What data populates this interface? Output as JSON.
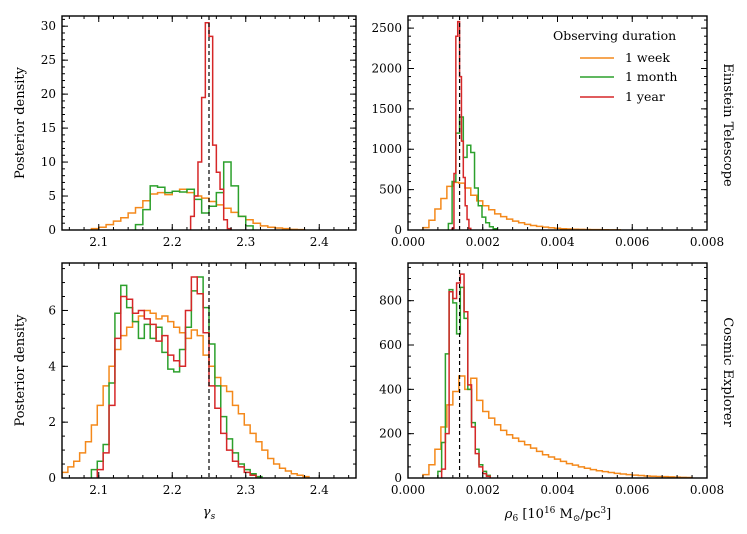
{
  "figure": {
    "row_labels": [
      "Einstein Telescope",
      "Cosmic Explorer"
    ],
    "legend_title": "Observing duration",
    "legend_entries": [
      "1 week",
      "1 month",
      "1 year"
    ],
    "colors": {
      "1 week": "#f4891b",
      "1 month": "#2ca02c",
      "1 year": "#d62728"
    }
  },
  "chart_data": [
    {
      "type": "histogram",
      "panel": "Einstein Telescope - gamma_s",
      "xlabel": "",
      "ylabel": "Posterior density",
      "xlim": [
        2.05,
        2.45
      ],
      "ylim": [
        0,
        31.5
      ],
      "xticks": [
        2.1,
        2.2,
        2.3,
        2.4
      ],
      "xticklabels": [
        "2.1",
        "2.2",
        "2.3",
        "2.4"
      ],
      "yticks": [
        0,
        5,
        10,
        15,
        20,
        25,
        30
      ],
      "yticklabels": [
        "0",
        "5",
        "10",
        "15",
        "20",
        "25",
        "30"
      ],
      "minor_x": 0.02,
      "minor_y": 1,
      "truth": 2.25,
      "series": [
        {
          "name": "1 week",
          "x0": 2.09,
          "dx": 0.01,
          "values": [
            0.2,
            0.4,
            0.8,
            1.3,
            1.8,
            2.5,
            3.3,
            4.3,
            5.3,
            5.5,
            5.2,
            5.7,
            6.0,
            5.5,
            5.0,
            4.7,
            4.2,
            3.7,
            3.2,
            2.6,
            2.0,
            1.5,
            1.0,
            0.6,
            0.4,
            0.3,
            0.2,
            0.1,
            0.05
          ]
        },
        {
          "name": "1 month",
          "x0": 2.15,
          "dx": 0.01,
          "values": [
            0.8,
            3.0,
            6.5,
            6.3,
            5.5,
            5.7,
            5.6,
            6.0,
            4.5,
            2.5,
            3.5,
            5.5,
            10.0,
            6.5,
            2.0,
            0.6
          ]
        },
        {
          "name": "1 year",
          "x0": 2.225,
          "dx": 0.005,
          "values": [
            2.0,
            5.0,
            10.0,
            19.5,
            30.5,
            28.5,
            12.5,
            8.5,
            6.0,
            1.5,
            0.2
          ]
        }
      ]
    },
    {
      "type": "histogram",
      "panel": "Einstein Telescope - rho_6",
      "xlabel": "",
      "ylabel": "",
      "xlim": [
        0,
        0.008
      ],
      "ylim": [
        0,
        2650
      ],
      "xticks": [
        0,
        0.002,
        0.004,
        0.006,
        0.008
      ],
      "xticklabels": [
        "0.000",
        "0.002",
        "0.004",
        "0.006",
        "0.008"
      ],
      "yticks": [
        0,
        500,
        1000,
        1500,
        2000,
        2500
      ],
      "yticklabels": [
        "0",
        "500",
        "1000",
        "1500",
        "2000",
        "2500"
      ],
      "minor_x": 0.0004,
      "minor_y": 100,
      "truth": 0.00138,
      "series": [
        {
          "name": "1 week",
          "x0": 0.0004,
          "dx": 0.00016,
          "values": [
            30,
            120,
            260,
            390,
            540,
            590,
            580,
            520,
            430,
            360,
            300,
            250,
            200,
            165,
            135,
            110,
            90,
            70,
            55,
            45,
            35,
            28,
            22,
            16,
            12,
            10,
            8,
            6,
            5,
            4,
            3,
            2,
            2
          ]
        },
        {
          "name": "1 month",
          "x0": 0.00108,
          "dx": 0.0001,
          "values": [
            80,
            600,
            1200,
            1400,
            900,
            1050,
            960,
            520,
            300,
            160,
            90,
            40,
            15
          ]
        },
        {
          "name": "1 year",
          "x0": 0.00118,
          "dx": 5e-05,
          "values": [
            20,
            700,
            2400,
            2580,
            1900,
            1100,
            650,
            300,
            130,
            20
          ]
        }
      ]
    },
    {
      "type": "histogram",
      "panel": "Cosmic Explorer - gamma_s",
      "xlabel": "γs",
      "ylabel": "Posterior density",
      "xlim": [
        2.05,
        2.45
      ],
      "ylim": [
        0,
        7.7
      ],
      "xticks": [
        2.1,
        2.2,
        2.3,
        2.4
      ],
      "xticklabels": [
        "2.1",
        "2.2",
        "2.3",
        "2.4"
      ],
      "yticks": [
        0,
        2,
        4,
        6
      ],
      "yticklabels": [
        "0",
        "2",
        "4",
        "6"
      ],
      "minor_x": 0.02,
      "minor_y": 0.5,
      "truth": 2.25,
      "series": [
        {
          "name": "1 week",
          "x0": 2.05,
          "dx": 0.008,
          "values": [
            0.2,
            0.4,
            0.6,
            0.9,
            1.3,
            1.9,
            2.6,
            3.3,
            4.0,
            4.6,
            5.1,
            5.4,
            5.6,
            5.8,
            6.0,
            5.9,
            5.7,
            5.8,
            5.6,
            5.4,
            5.2,
            5.0,
            5.3,
            5.1,
            4.4,
            4.0,
            3.6,
            3.3,
            3.1,
            2.6,
            2.3,
            1.9,
            1.6,
            1.3,
            1.0,
            0.7,
            0.5,
            0.35,
            0.25,
            0.15,
            0.1,
            0.05
          ]
        },
        {
          "name": "1 month",
          "x0": 2.09,
          "dx": 0.008,
          "values": [
            0.3,
            0.6,
            1.2,
            3.4,
            5.9,
            6.9,
            6.1,
            5.6,
            5.0,
            5.5,
            5.0,
            5.4,
            4.5,
            3.9,
            3.8,
            4.6,
            5.4,
            6.7,
            7.2,
            6.1,
            4.8,
            3.3,
            2.2,
            1.4,
            0.9,
            0.5,
            0.3,
            0.15,
            0.05
          ]
        },
        {
          "name": "1 year",
          "x0": 2.098,
          "dx": 0.008,
          "values": [
            0.3,
            0.9,
            2.6,
            5.0,
            6.5,
            6.4,
            5.9,
            6.0,
            5.7,
            5.5,
            4.9,
            5.1,
            4.4,
            4.2,
            4.0,
            6.0,
            7.2,
            6.6,
            5.2,
            3.3,
            2.5,
            1.6,
            1.0,
            0.6,
            0.4,
            0.2,
            0.1
          ]
        }
      ]
    },
    {
      "type": "histogram",
      "panel": "Cosmic Explorer - rho_6",
      "xlabel": "ρ6 [10^16 M⊙/pc^3]",
      "ylabel": "",
      "xlim": [
        0,
        0.008
      ],
      "ylim": [
        0,
        970
      ],
      "xticks": [
        0,
        0.002,
        0.004,
        0.006,
        0.008
      ],
      "xticklabels": [
        "0.000",
        "0.002",
        "0.004",
        "0.006",
        "0.008"
      ],
      "yticks": [
        0,
        200,
        400,
        600,
        800
      ],
      "yticklabels": [
        "0",
        "200",
        "400",
        "600",
        "800"
      ],
      "minor_x": 0.0004,
      "minor_y": 50,
      "truth": 0.00138,
      "series": [
        {
          "name": "1 week",
          "x0": 0.0004,
          "dx": 0.00016,
          "values": [
            15,
            60,
            130,
            230,
            330,
            390,
            460,
            400,
            450,
            350,
            300,
            270,
            240,
            215,
            195,
            180,
            165,
            150,
            135,
            120,
            105,
            95,
            85,
            75,
            65,
            58,
            50,
            44,
            38,
            33,
            29,
            25,
            21,
            18,
            15,
            13,
            11,
            9,
            8,
            7,
            6,
            5,
            4,
            3,
            2
          ]
        },
        {
          "name": "1 month",
          "x0": 0.0008,
          "dx": 0.0001,
          "values": [
            30,
            160,
            560,
            850,
            790,
            650,
            860,
            720,
            400,
            250,
            130,
            60,
            30,
            12
          ]
        },
        {
          "name": "1 year",
          "x0": 0.0009,
          "dx": 0.0001,
          "values": [
            40,
            200,
            840,
            810,
            880,
            920,
            750,
            420,
            230,
            110,
            50,
            20,
            8
          ]
        }
      ]
    }
  ]
}
